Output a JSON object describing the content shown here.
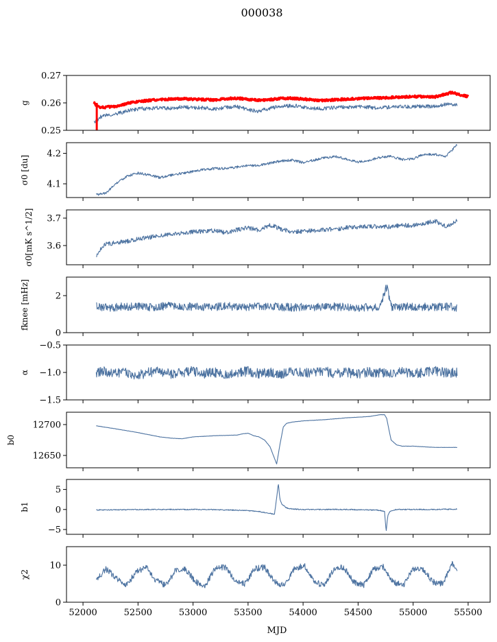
{
  "figure": {
    "title": "000038",
    "xlabel": "MJD",
    "xticks": [
      52000,
      52500,
      53000,
      53500,
      54000,
      54500,
      55000,
      55500
    ],
    "xlim": [
      51850,
      55700
    ]
  },
  "chart_data": [
    {
      "type": "line",
      "id": "g",
      "ylabel": "g",
      "ylim": [
        0.25,
        0.27
      ],
      "yticks": [
        0.25,
        0.26,
        0.27
      ],
      "ytick_labels": [
        "0.25",
        "0.26",
        "0.27"
      ],
      "series": [
        {
          "color": "#ff0000",
          "x": [
            52100,
            52120,
            52150,
            52200,
            52300,
            52400,
            52500,
            52600,
            52700,
            52800,
            52900,
            53000,
            53100,
            53200,
            53300,
            53400,
            53500,
            53600,
            53700,
            53800,
            53900,
            54000,
            54100,
            54200,
            54300,
            54400,
            54500,
            54600,
            54700,
            54800,
            54900,
            55000,
            55100,
            55200,
            55300,
            55350,
            55400,
            55500
          ],
          "y": [
            0.26,
            0.259,
            0.2585,
            0.2584,
            0.2588,
            0.2598,
            0.2604,
            0.2609,
            0.2612,
            0.2614,
            0.2615,
            0.2613,
            0.2612,
            0.2611,
            0.2615,
            0.2617,
            0.2613,
            0.261,
            0.2612,
            0.2616,
            0.2617,
            0.2614,
            0.261,
            0.2609,
            0.2612,
            0.2614,
            0.2616,
            0.2617,
            0.2618,
            0.262,
            0.2621,
            0.2623,
            0.2623,
            0.2622,
            0.2632,
            0.2638,
            0.2632,
            0.2623
          ]
        },
        {
          "color": "#4c72a0",
          "x": [
            52100,
            52130,
            52150,
            52200,
            52300,
            52400,
            52500,
            52600,
            52700,
            52800,
            52900,
            53000,
            53100,
            53200,
            53300,
            53400,
            53500,
            53600,
            53700,
            53800,
            53900,
            54000,
            54100,
            54200,
            54300,
            54400,
            54500,
            54600,
            54700,
            54800,
            54900,
            55000,
            55100,
            55200,
            55300,
            55400
          ],
          "y": [
            0.253,
            0.2535,
            0.2548,
            0.2553,
            0.256,
            0.257,
            0.2578,
            0.258,
            0.2582,
            0.258,
            0.2585,
            0.2583,
            0.2582,
            0.2578,
            0.2584,
            0.2586,
            0.2575,
            0.257,
            0.258,
            0.2588,
            0.259,
            0.2585,
            0.258,
            0.258,
            0.2583,
            0.2584,
            0.2586,
            0.2584,
            0.2582,
            0.2585,
            0.2586,
            0.2587,
            0.2586,
            0.2588,
            0.2596,
            0.2594
          ]
        }
      ]
    },
    {
      "type": "line",
      "id": "sigma0_du",
      "ylabel": "σ0 [du]",
      "ylim": [
        4.055,
        4.235
      ],
      "yticks": [
        4.1,
        4.2
      ],
      "ytick_labels": [
        "4.1",
        "4.2"
      ],
      "series": [
        {
          "color": "#4c72a0",
          "x": [
            52120,
            52200,
            52300,
            52400,
            52500,
            52600,
            52700,
            52800,
            52900,
            53000,
            53100,
            53200,
            53300,
            53400,
            53500,
            53600,
            53700,
            53800,
            53900,
            54000,
            54100,
            54200,
            54300,
            54400,
            54500,
            54600,
            54700,
            54800,
            54900,
            55000,
            55100,
            55200,
            55300,
            55400
          ],
          "y": [
            4.065,
            4.068,
            4.1,
            4.125,
            4.135,
            4.13,
            4.12,
            4.128,
            4.135,
            4.14,
            4.147,
            4.15,
            4.15,
            4.155,
            4.16,
            4.16,
            4.168,
            4.175,
            4.178,
            4.17,
            4.178,
            4.186,
            4.189,
            4.18,
            4.172,
            4.177,
            4.187,
            4.19,
            4.18,
            4.182,
            4.197,
            4.197,
            4.19,
            4.228
          ]
        }
      ]
    },
    {
      "type": "line",
      "id": "sigma0_mks",
      "ylabel": "σ0[mK s^1/2]",
      "ylim": [
        3.53,
        3.73
      ],
      "yticks": [
        3.6,
        3.7
      ],
      "ytick_labels": [
        "3.6",
        "3.7"
      ],
      "series": [
        {
          "color": "#4c72a0",
          "x": [
            52120,
            52200,
            52300,
            52400,
            52500,
            52600,
            52700,
            52800,
            52900,
            53000,
            53100,
            53200,
            53300,
            53400,
            53500,
            53600,
            53700,
            53800,
            53900,
            54000,
            54100,
            54200,
            54300,
            54400,
            54500,
            54600,
            54700,
            54800,
            54900,
            55000,
            55100,
            55200,
            55300,
            55400
          ],
          "y": [
            3.565,
            3.605,
            3.61,
            3.615,
            3.625,
            3.63,
            3.637,
            3.64,
            3.645,
            3.65,
            3.652,
            3.655,
            3.647,
            3.658,
            3.665,
            3.655,
            3.675,
            3.66,
            3.65,
            3.652,
            3.655,
            3.658,
            3.66,
            3.665,
            3.668,
            3.67,
            3.67,
            3.668,
            3.675,
            3.672,
            3.68,
            3.69,
            3.67,
            3.69
          ]
        }
      ]
    },
    {
      "type": "line",
      "id": "fknee",
      "ylabel": "fknee [mHz]",
      "ylim": [
        0,
        3.0
      ],
      "yticks": [
        0,
        2
      ],
      "ytick_labels": [
        "0",
        "2"
      ],
      "series": [
        {
          "color": "#4c72a0",
          "x": [
            52120,
            52200,
            52300,
            52400,
            52500,
            52600,
            52700,
            52800,
            52900,
            53000,
            53100,
            53200,
            53300,
            53400,
            53500,
            53600,
            53700,
            53800,
            53900,
            54000,
            54100,
            54200,
            54300,
            54400,
            54500,
            54600,
            54700,
            54760,
            54800,
            54900,
            55000,
            55100,
            55200,
            55300,
            55400
          ],
          "y": [
            1.4,
            1.35,
            1.38,
            1.42,
            1.4,
            1.36,
            1.4,
            1.45,
            1.38,
            1.42,
            1.4,
            1.37,
            1.43,
            1.4,
            1.38,
            1.45,
            1.42,
            1.4,
            1.36,
            1.4,
            1.38,
            1.42,
            1.4,
            1.37,
            1.35,
            1.38,
            1.4,
            2.5,
            1.4,
            1.38,
            1.42,
            1.4,
            1.38,
            1.42,
            1.35
          ]
        }
      ]
    },
    {
      "type": "line",
      "id": "alpha",
      "ylabel": "α",
      "ylim": [
        -1.5,
        -0.5
      ],
      "yticks": [
        -1.5,
        -1.0,
        -0.5
      ],
      "ytick_labels": [
        "−1.5",
        "−1.0",
        "−0.5"
      ],
      "series": [
        {
          "color": "#4c72a0",
          "x": [
            52120,
            52200,
            52300,
            52400,
            52500,
            52600,
            52700,
            52800,
            52900,
            53000,
            53100,
            53200,
            53300,
            53400,
            53500,
            53600,
            53700,
            53800,
            53900,
            54000,
            54100,
            54200,
            54300,
            54400,
            54500,
            54600,
            54700,
            54800,
            54900,
            55000,
            55100,
            55200,
            55300,
            55400
          ],
          "y": [
            -1.0,
            -0.98,
            -1.02,
            -1.0,
            -1.05,
            -1.0,
            -0.98,
            -1.03,
            -1.0,
            -0.97,
            -1.02,
            -1.0,
            -1.04,
            -1.0,
            -0.98,
            -1.02,
            -1.0,
            -1.03,
            -0.99,
            -1.01,
            -1.0,
            -0.98,
            -1.02,
            -1.0,
            -1.03,
            -0.99,
            -1.01,
            -1.0,
            -0.98,
            -1.02,
            -1.0,
            -0.97,
            -1.01,
            -1.0
          ]
        }
      ]
    },
    {
      "type": "line",
      "id": "b0",
      "ylabel": "b0",
      "ylim": [
        12630,
        12720
      ],
      "yticks": [
        12650,
        12700
      ],
      "ytick_labels": [
        "12650",
        "12700"
      ],
      "series": [
        {
          "color": "#4c72a0",
          "x": [
            52120,
            52300,
            52500,
            52700,
            52800,
            52900,
            53000,
            53200,
            53400,
            53450,
            53500,
            53550,
            53600,
            53650,
            53700,
            53730,
            53760,
            53790,
            53820,
            53850,
            53900,
            53950,
            54000,
            54200,
            54400,
            54600,
            54700,
            54740,
            54760,
            54780,
            54800,
            54850,
            54900,
            55000,
            55100,
            55200,
            55300,
            55400
          ],
          "y": [
            12698,
            12693,
            12687,
            12680,
            12678,
            12677,
            12680,
            12682,
            12683,
            12685,
            12686,
            12682,
            12680,
            12675,
            12664,
            12650,
            12636,
            12668,
            12696,
            12702,
            12704,
            12705,
            12706,
            12708,
            12711,
            12713,
            12716,
            12716,
            12710,
            12692,
            12675,
            12667,
            12665,
            12665,
            12664,
            12663,
            12663,
            12663
          ]
        }
      ]
    },
    {
      "type": "line",
      "id": "b1",
      "ylabel": "b1",
      "ylim": [
        -6.2,
        7.5
      ],
      "yticks": [
        -5,
        0,
        5
      ],
      "ytick_labels": [
        "−5",
        "0",
        "5"
      ],
      "series": [
        {
          "color": "#4c72a0",
          "x": [
            52120,
            52300,
            52500,
            52700,
            52900,
            53100,
            53300,
            53500,
            53600,
            53700,
            53740,
            53760,
            53775,
            53790,
            53810,
            53850,
            53900,
            54000,
            54200,
            54400,
            54600,
            54700,
            54740,
            54755,
            54770,
            54790,
            54850,
            55000,
            55200,
            55400
          ],
          "y": [
            -0.1,
            -0.1,
            0.0,
            0.0,
            0.0,
            0.0,
            -0.1,
            -0.3,
            -0.5,
            -1.0,
            -1.2,
            3.0,
            6.5,
            2.5,
            1.2,
            0.4,
            0.1,
            0.0,
            0.0,
            0.0,
            -0.1,
            -0.2,
            -0.5,
            -5.5,
            -1.5,
            -0.4,
            0.0,
            0.0,
            0.0,
            0.1
          ]
        }
      ]
    },
    {
      "type": "line",
      "id": "chi2",
      "ylabel": "χ2",
      "ylim": [
        0,
        15
      ],
      "yticks": [
        0,
        10
      ],
      "ytick_labels": [
        "0",
        "10"
      ],
      "period_days": 365.25,
      "series": [
        {
          "color": "#4c72a0",
          "x": [
            52120,
            52210,
            52300,
            52390,
            52480,
            52570,
            52660,
            52750,
            52840,
            52930,
            53020,
            53110,
            53200,
            53290,
            53380,
            53470,
            53560,
            53650,
            53740,
            53830,
            53920,
            54010,
            54100,
            54190,
            54280,
            54370,
            54460,
            54550,
            54640,
            54730,
            54820,
            54910,
            55000,
            55090,
            55180,
            55270,
            55360,
            55400
          ],
          "y": [
            6.0,
            9.0,
            6.5,
            4.5,
            8.0,
            9.5,
            6.0,
            4.5,
            8.5,
            9.0,
            5.5,
            4.5,
            9.0,
            9.5,
            6.0,
            5.0,
            9.0,
            9.5,
            5.5,
            4.5,
            9.0,
            10.0,
            5.5,
            4.5,
            9.0,
            9.5,
            5.5,
            4.5,
            9.0,
            9.5,
            5.5,
            4.5,
            9.0,
            9.0,
            5.5,
            5.0,
            10.5,
            8.0
          ]
        }
      ]
    }
  ]
}
